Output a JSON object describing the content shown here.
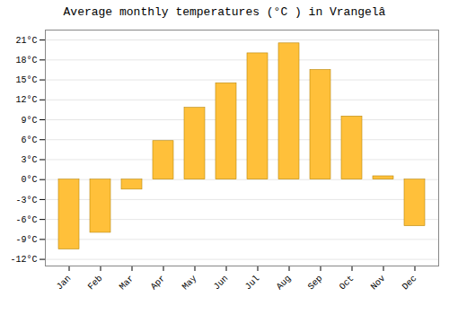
{
  "chart_data": {
    "type": "bar",
    "title": "Average monthly temperatures (°C ) in Vrangelâ",
    "categories": [
      "Jan",
      "Feb",
      "Mar",
      "Apr",
      "May",
      "Jun",
      "Jul",
      "Aug",
      "Sep",
      "Oct",
      "Nov",
      "Dec"
    ],
    "values": [
      -10.5,
      -8.0,
      -1.5,
      5.8,
      10.8,
      14.5,
      19.0,
      20.5,
      16.5,
      9.5,
      0.5,
      -7.0
    ],
    "color": "#FFC03A",
    "ylim": [
      -13,
      22.5
    ],
    "yticks": [
      {
        "value": -12,
        "label": "-12°C"
      },
      {
        "value": -9,
        "label": "-9°C"
      },
      {
        "value": -6,
        "label": "-6°C"
      },
      {
        "value": -3,
        "label": "-3°C"
      },
      {
        "value": 0,
        "label": "0°C"
      },
      {
        "value": 3,
        "label": "3°C"
      },
      {
        "value": 6,
        "label": "6°C"
      },
      {
        "value": 9,
        "label": "9°C"
      },
      {
        "value": 12,
        "label": "12°C"
      },
      {
        "value": 15,
        "label": "15°C"
      },
      {
        "value": 18,
        "label": "18°C"
      },
      {
        "value": 21,
        "label": "21°C"
      }
    ],
    "grid": true
  }
}
